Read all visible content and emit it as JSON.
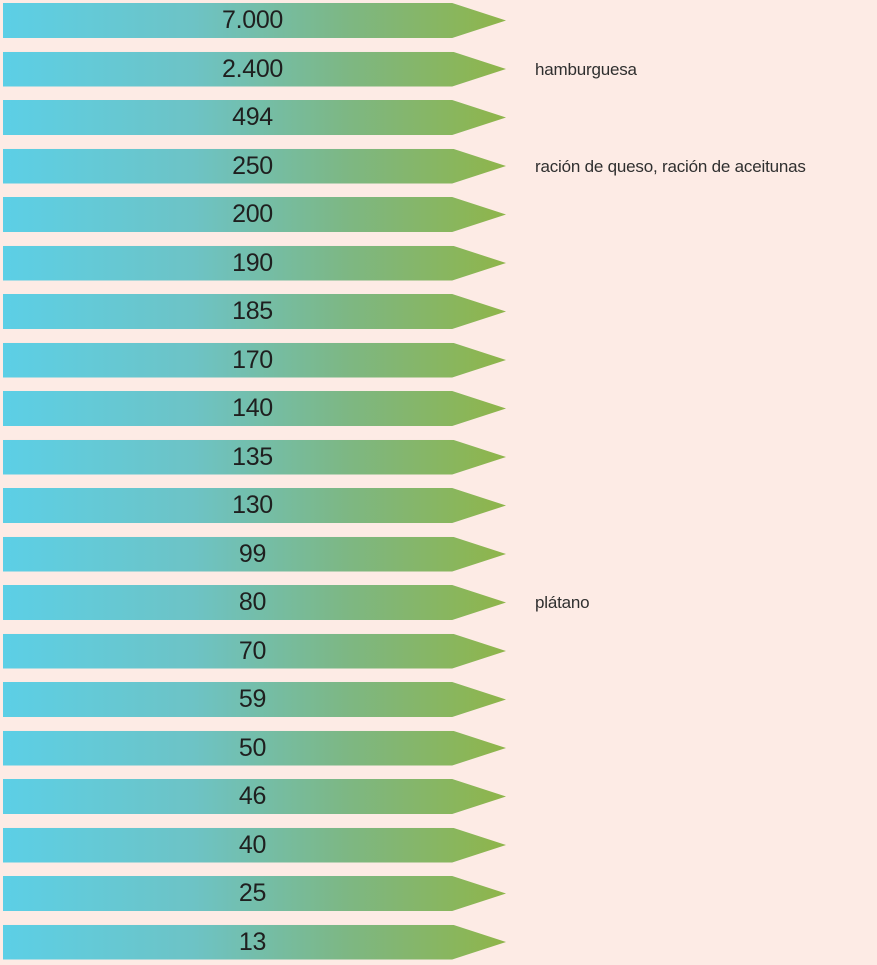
{
  "rows": [
    {
      "value": "7.000",
      "label": ""
    },
    {
      "value": "2.400",
      "label": "hamburguesa"
    },
    {
      "value": "494",
      "label": ""
    },
    {
      "value": "250",
      "label": "ración de queso, ración de aceitunas"
    },
    {
      "value": "200",
      "label": ""
    },
    {
      "value": "190",
      "label": ""
    },
    {
      "value": "185",
      "label": ""
    },
    {
      "value": "170",
      "label": ""
    },
    {
      "value": "140",
      "label": ""
    },
    {
      "value": "135",
      "label": ""
    },
    {
      "value": "130",
      "label": ""
    },
    {
      "value": "99",
      "label": ""
    },
    {
      "value": "80",
      "label": "plátano"
    },
    {
      "value": "70",
      "label": ""
    },
    {
      "value": "59",
      "label": ""
    },
    {
      "value": "50",
      "label": ""
    },
    {
      "value": "46",
      "label": ""
    },
    {
      "value": "40",
      "label": ""
    },
    {
      "value": "25",
      "label": ""
    },
    {
      "value": "13",
      "label": ""
    }
  ],
  "colors": {
    "background": "#fdebe5",
    "arrow_start": "#5ccfe6",
    "arrow_end": "#8fb54a",
    "text": "#1f1f1f"
  }
}
